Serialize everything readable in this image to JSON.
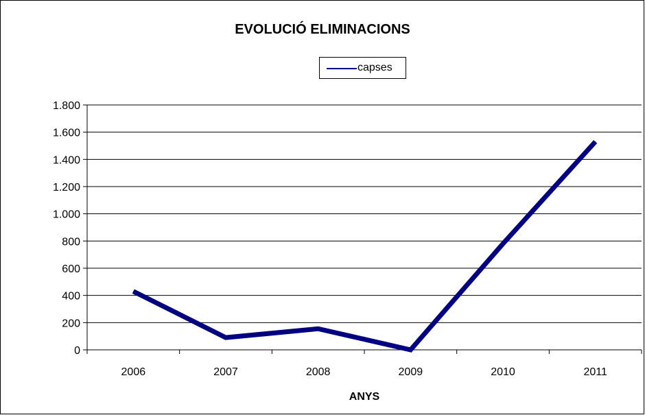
{
  "chart_data": {
    "type": "line",
    "title": "EVOLUCIÓ ELIMINACIONS",
    "xlabel": "ANYS",
    "ylabel": "",
    "categories": [
      "2006",
      "2007",
      "2008",
      "2009",
      "2010",
      "2011"
    ],
    "series": [
      {
        "name": "capses",
        "values": [
          430,
          90,
          155,
          0,
          780,
          1530
        ]
      }
    ],
    "ylim": [
      0,
      1800
    ],
    "ytick_values": [
      0,
      200,
      400,
      600,
      800,
      1000,
      1200,
      1400,
      1600,
      1800
    ],
    "ytick_labels": [
      "0",
      "200",
      "400",
      "600",
      "800",
      "1.000",
      "1.200",
      "1.400",
      "1.600",
      "1.800"
    ],
    "grid": "horizontal",
    "legend_position": "top-center",
    "series_color": "#000080"
  }
}
